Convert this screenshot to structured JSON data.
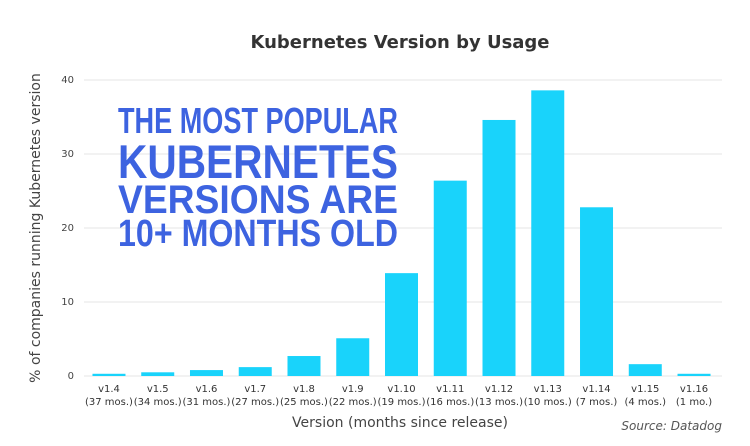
{
  "chart_data": {
    "type": "bar",
    "title": "Kubernetes Version by Usage",
    "x_label": "Version (months since release)",
    "y_label": "% of companies running Kubernetes version",
    "categories": [
      "v1.4",
      "v1.5",
      "v1.6",
      "v1.7",
      "v1.8",
      "v1.9",
      "v1.10",
      "v1.11",
      "v1.12",
      "v1.13",
      "v1.14",
      "v1.15",
      "v1.16"
    ],
    "category_sublabels": [
      "(37 mos.)",
      "(34 mos.)",
      "(31 mos.)",
      "(27 mos.)",
      "(25 mos.)",
      "(22 mos.)",
      "(19 mos.)",
      "(16 mos.)",
      "(13 mos.)",
      "(10 mos.)",
      "(7 mos.)",
      "(4 mos.)",
      "(1 mo.)"
    ],
    "values": [
      0.3,
      0.5,
      0.8,
      1.2,
      2.7,
      5.1,
      13.9,
      26.4,
      34.6,
      38.6,
      22.8,
      1.6,
      0.3
    ],
    "color": "#19d3fb",
    "ylim": [
      0,
      40
    ],
    "yticks": [
      0,
      10,
      20,
      30,
      40
    ],
    "grid": true,
    "annotation": [
      "THE MOST POPULAR",
      "KUBERNETES",
      "VERSIONS ARE",
      "10+ MONTHS OLD"
    ],
    "source": "Source: Datadog"
  }
}
